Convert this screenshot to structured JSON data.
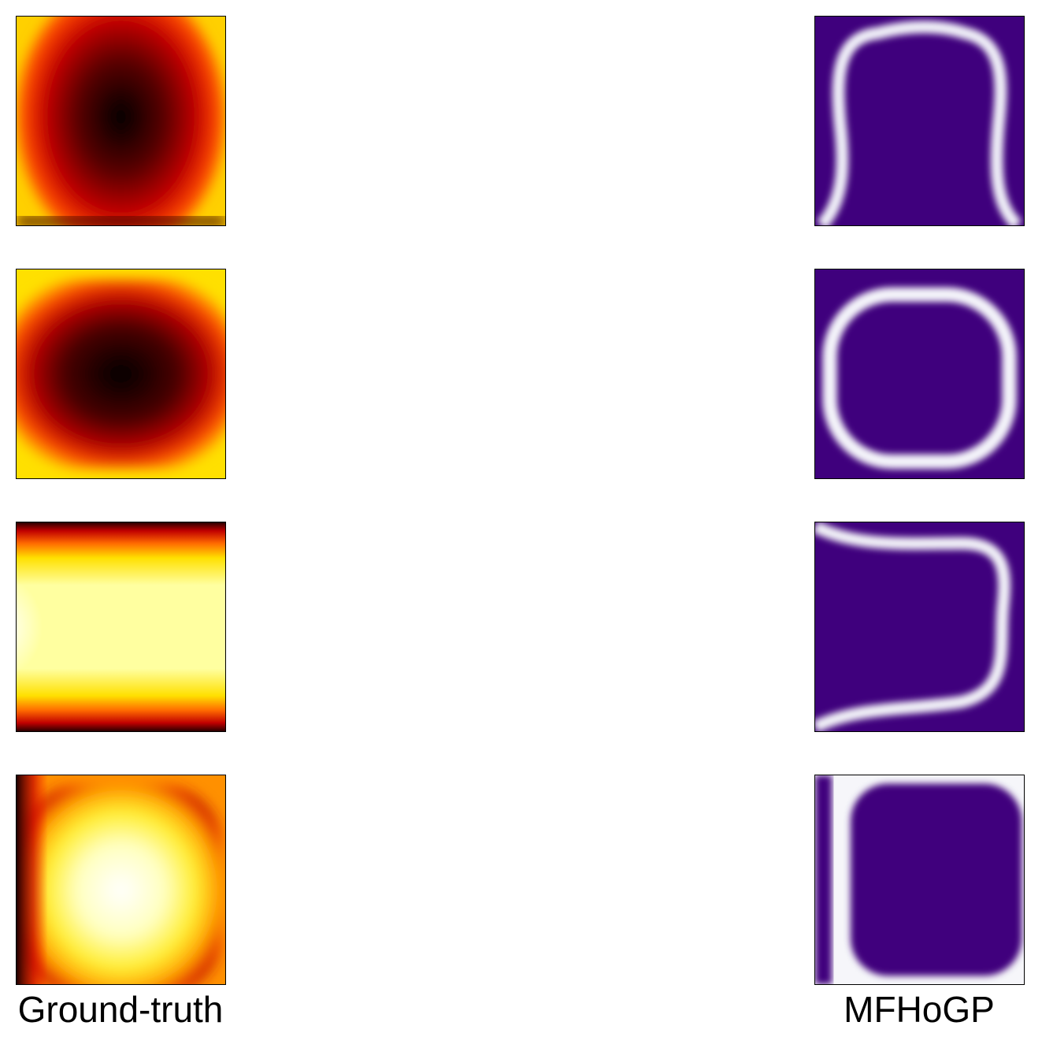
{
  "chart_data": {
    "type": "heatmap",
    "columns": [
      {
        "label": "Ground-truth",
        "colormap": "hot"
      },
      {
        "label": "MFHoGP",
        "colormap": "purple-white"
      }
    ],
    "rows": 4
  }
}
